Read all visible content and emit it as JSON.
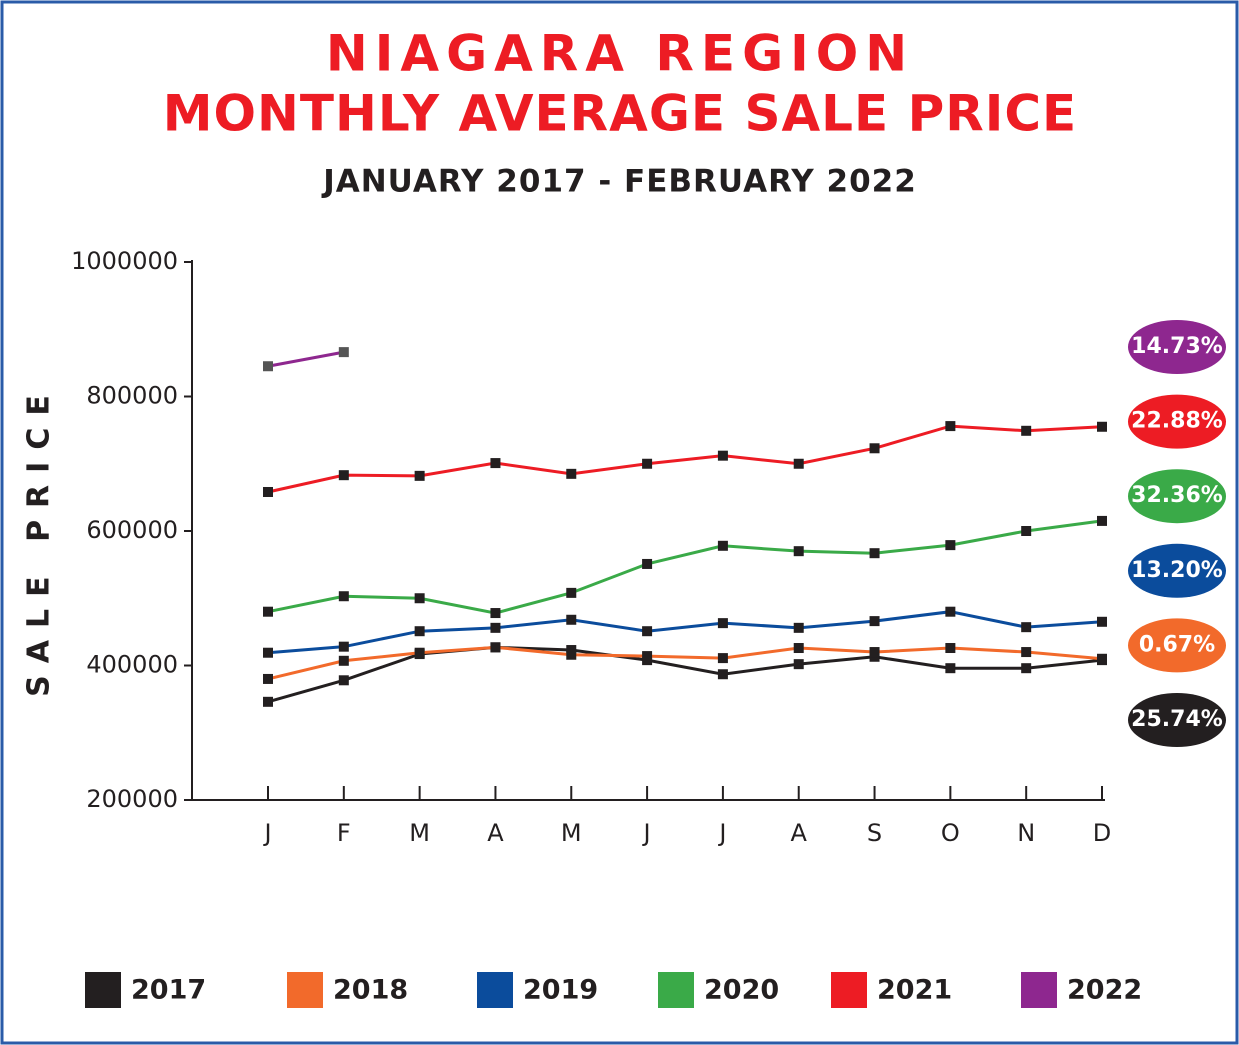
{
  "chart_data": {
    "type": "line",
    "title": [
      "NIAGARA REGION",
      "MONTHLY AVERAGE SALE PRICE"
    ],
    "subtitle": "JANUARY 2017 - FEBRUARY 2022",
    "y_label": "SALE PRICE",
    "categories": [
      "J",
      "F",
      "M",
      "A",
      "M",
      "J",
      "J",
      "A",
      "S",
      "O",
      "N",
      "D"
    ],
    "ylim": [
      200000,
      1000000
    ],
    "yticks": [
      200000,
      400000,
      600000,
      800000,
      1000000
    ],
    "marker_color": "#231f20",
    "series": [
      {
        "name": "2017",
        "color": "#231f20",
        "change": "25.74%",
        "values": [
          346000,
          378000,
          417000,
          427000,
          423000,
          408000,
          387000,
          402000,
          413000,
          396000,
          396000,
          408000
        ]
      },
      {
        "name": "2018",
        "color": "#f26a2b",
        "change": "0.67%",
        "values": [
          380000,
          407000,
          419000,
          427000,
          416000,
          414000,
          411000,
          426000,
          420000,
          426000,
          420000,
          410000
        ]
      },
      {
        "name": "2019",
        "color": "#0b4c9c",
        "change": "13.20%",
        "values": [
          419000,
          428000,
          451000,
          456000,
          468000,
          451000,
          463000,
          456000,
          466000,
          480000,
          457000,
          465000
        ]
      },
      {
        "name": "2020",
        "color": "#3aaa48",
        "change": "32.36%",
        "values": [
          480000,
          503000,
          500000,
          478000,
          508000,
          551000,
          578000,
          570000,
          567000,
          579000,
          600000,
          615000
        ]
      },
      {
        "name": "2021",
        "color": "#ed1c24",
        "change": "22.88%",
        "values": [
          658000,
          683000,
          682000,
          701000,
          685000,
          700000,
          712000,
          700000,
          723000,
          756000,
          749000,
          755000
        ]
      },
      {
        "name": "2022",
        "color": "#8e278f",
        "change": "14.73%",
        "values": [
          845000,
          866000,
          null,
          null,
          null,
          null,
          null,
          null,
          null,
          null,
          null,
          null
        ]
      }
    ]
  }
}
